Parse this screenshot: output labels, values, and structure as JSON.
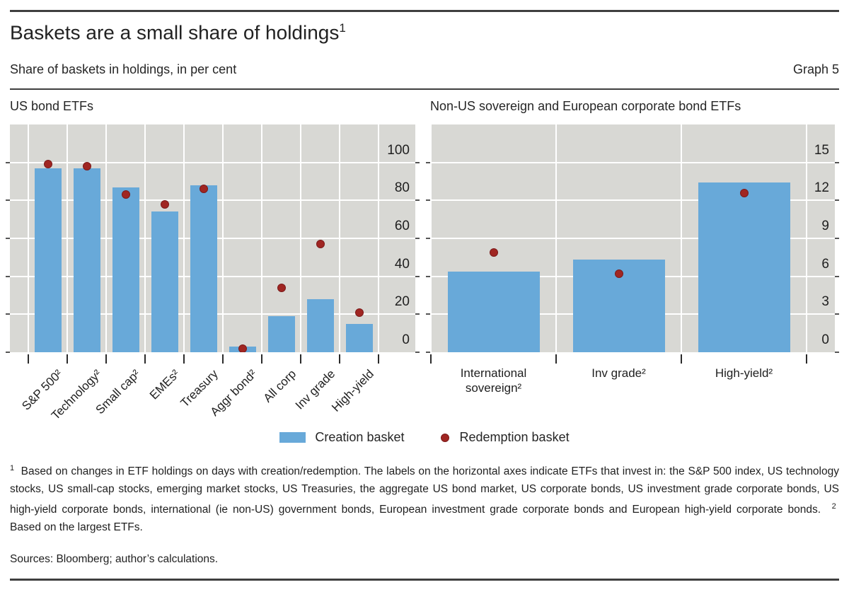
{
  "header": {
    "title": "Baskets are a small share of holdings",
    "title_sup": "1",
    "subtitle": "Share of baskets in holdings, in per cent",
    "graph_label": "Graph 5"
  },
  "chart_data": [
    {
      "type": "bar",
      "title": "US bond ETFs",
      "categories": [
        "S&P 500²",
        "Technology²",
        "Small cap²",
        "EMEs²",
        "Treasury",
        "Aggr bond²",
        "All corp",
        "Inv grade",
        "High-yield"
      ],
      "series": [
        {
          "name": "Creation basket",
          "type": "bar",
          "values": [
            97,
            97,
            87,
            74,
            88,
            3,
            19,
            28,
            15
          ]
        },
        {
          "name": "Redemption basket",
          "type": "scatter",
          "values": [
            99,
            98,
            83,
            78,
            86,
            2,
            34,
            57,
            21
          ]
        }
      ],
      "ylim": [
        0,
        120
      ],
      "yticks": [
        0,
        20,
        40,
        60,
        80,
        100
      ],
      "y_axis_side": "right",
      "grid": true,
      "legend_position": "bottom"
    },
    {
      "type": "bar",
      "title": "Non-US sovereign and European corporate bond ETFs",
      "categories": [
        "International sovereign²",
        "Inv grade²",
        "High-yield²"
      ],
      "series": [
        {
          "name": "Creation basket",
          "type": "bar",
          "values": [
            6.4,
            7.3,
            13.4
          ]
        },
        {
          "name": "Redemption basket",
          "type": "scatter",
          "values": [
            7.9,
            6.2,
            12.6
          ]
        }
      ],
      "ylim": [
        0,
        18
      ],
      "yticks": [
        0,
        3,
        6,
        9,
        12,
        15
      ],
      "y_axis_side": "right",
      "grid": true,
      "legend_position": "bottom"
    }
  ],
  "footnotes": [
    {
      "marker": "1",
      "text": "Based on changes in ETF holdings on days with creation/redemption. The labels on the horizontal axes indicate ETFs that invest in: the S&P 500 index, US technology stocks, US small-cap stocks, emerging market stocks, US Treasuries, the aggregate US bond market, US corporate bonds, US investment grade corporate bonds, US high-yield corporate bonds, international (ie non-US) government bonds, European investment grade corporate bonds and European high-yield corporate bonds."
    },
    {
      "marker": "2",
      "text": "Based on the largest ETFs."
    }
  ],
  "sources": "Sources: Bloomberg; author’s calculations.",
  "colors": {
    "bar_blue": "#68a9d9",
    "dot_red": "#a02622",
    "dot_red_border": "#7c1a1a",
    "plot_bg": "#d8d8d4",
    "grid_white": "#ffffff",
    "rule": "#3f3f3f",
    "text": "#262626"
  }
}
